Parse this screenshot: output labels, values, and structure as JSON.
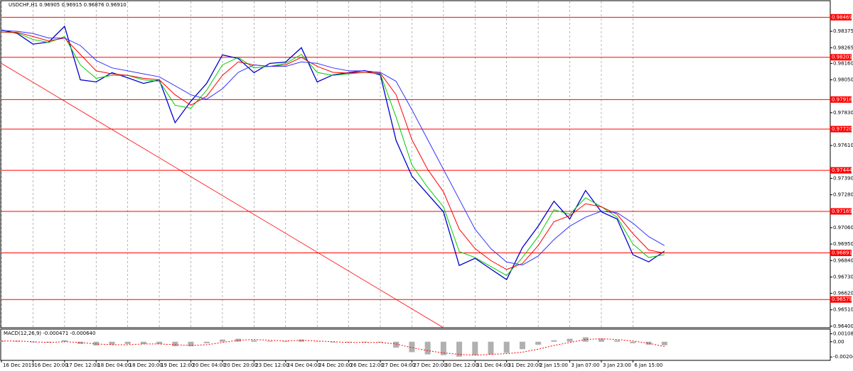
{
  "chart_data": [
    {
      "type": "line",
      "title": "USDCHF,H1  0.96905 0.96915 0.96876 0.96910",
      "x": [
        0,
        8,
        16,
        24,
        32,
        40,
        48,
        56,
        64,
        72,
        80,
        88,
        96,
        104,
        112,
        120,
        128,
        136,
        144,
        152,
        160,
        168,
        176,
        184,
        192,
        200,
        208,
        216,
        224,
        232,
        240,
        248,
        256,
        264,
        272,
        280,
        288,
        296,
        304,
        312,
        320,
        328,
        336
      ],
      "xlim": [
        0,
        420
      ],
      "xticks": [
        {
          "value": 0,
          "label": "16 Dec 2019"
        },
        {
          "value": 16,
          "label": "16 Dec 20:00"
        },
        {
          "value": 32,
          "label": "17 Dec 12:00"
        },
        {
          "value": 48,
          "label": "18 Dec 04:00"
        },
        {
          "value": 64,
          "label": "18 Dec 20:00"
        },
        {
          "value": 80,
          "label": "19 Dec 12:00"
        },
        {
          "value": 96,
          "label": "20 Dec 04:00"
        },
        {
          "value": 112,
          "label": "20 Dec 20:00"
        },
        {
          "value": 128,
          "label": "23 Dec 12:00"
        },
        {
          "value": 144,
          "label": "24 Dec 04:00"
        },
        {
          "value": 160,
          "label": "24 Dec 20:00"
        },
        {
          "value": 176,
          "label": "26 Dec 12:00"
        },
        {
          "value": 192,
          "label": "27 Dec 04:00"
        },
        {
          "value": 208,
          "label": "27 Dec 20:00"
        },
        {
          "value": 224,
          "label": "30 Dec 12:00"
        },
        {
          "value": 240,
          "label": "31 Dec 04:00"
        },
        {
          "value": 256,
          "label": "31 Dec 20:00"
        },
        {
          "value": 272,
          "label": "2 Jan 15:00"
        },
        {
          "value": 288,
          "label": "3 Jan 07:00"
        },
        {
          "value": 304,
          "label": "3 Jan 23:00"
        },
        {
          "value": 320,
          "label": "6 Jan 15:00"
        }
      ],
      "ylim": [
        0.9639,
        0.98575
      ],
      "yticks": [
        0.98375,
        0.98265,
        {
          "value": 0.9816,
          "label": "0.98160"
        },
        {
          "value": 0.9805,
          "label": "0.98050"
        },
        {
          "value": 0.9783,
          "label": "0.97830"
        },
        {
          "value": 0.9761,
          "label": "0.97610"
        },
        {
          "value": 0.9739,
          "label": "0.97390"
        },
        {
          "value": 0.9728,
          "label": "0.97280"
        },
        {
          "value": 0.9706,
          "label": "0.97060"
        },
        {
          "value": 0.9695,
          "label": "0.96950"
        },
        {
          "value": 0.9684,
          "label": "0.96840"
        },
        {
          "value": 0.9673,
          "label": "0.96730"
        },
        {
          "value": 0.9662,
          "label": "0.96620"
        },
        {
          "value": 0.9651,
          "label": "0.96510"
        },
        {
          "value": 0.964,
          "label": "0.96400"
        }
      ],
      "grid": true,
      "series": [
        {
          "color": "#0000cc",
          "values": [
            0.98384,
            0.98361,
            0.98289,
            0.98303,
            0.98408,
            0.9805,
            0.98036,
            0.98098,
            0.98064,
            0.98026,
            0.9805,
            0.97763,
            0.97907,
            0.98026,
            0.98217,
            0.98193,
            0.98098,
            0.9816,
            0.98169,
            0.98265,
            0.98036,
            0.98083,
            0.98098,
            0.98112,
            0.98083,
            0.97644,
            0.97405,
            0.97285,
            0.97166,
            0.96807,
            0.96855,
            0.96783,
            0.96712,
            0.96927,
            0.9707,
            0.97237,
            0.97118,
            0.97309,
            0.97166,
            0.97118,
            0.96879,
            0.96831,
            0.96903
          ]
        },
        {
          "color": "#00cc00",
          "values": [
            0.9837,
            0.98365,
            0.9832,
            0.983,
            0.9834,
            0.9815,
            0.9806,
            0.9808,
            0.9808,
            0.9805,
            0.9804,
            0.9788,
            0.9786,
            0.9798,
            0.9815,
            0.982,
            0.9813,
            0.9814,
            0.9816,
            0.9822,
            0.981,
            0.9808,
            0.9809,
            0.981,
            0.9809,
            0.978,
            0.9748,
            0.9733,
            0.972,
            0.969,
            0.9686,
            0.968,
            0.9674,
            0.9686,
            0.97,
            0.9718,
            0.9715,
            0.9726,
            0.972,
            0.9713,
            0.9695,
            0.9686,
            0.9688
          ]
        },
        {
          "color": "#ff0000",
          "values": [
            0.9837,
            0.98368,
            0.9834,
            0.9831,
            0.9833,
            0.9822,
            0.9811,
            0.9809,
            0.9808,
            0.9806,
            0.9805,
            0.9795,
            0.9788,
            0.9794,
            0.9808,
            0.9817,
            0.9815,
            0.9814,
            0.9815,
            0.982,
            0.9814,
            0.981,
            0.98095,
            0.981,
            0.98095,
            0.9795,
            0.9765,
            0.9745,
            0.973,
            0.9705,
            0.9692,
            0.9684,
            0.9678,
            0.9682,
            0.9694,
            0.971,
            0.9714,
            0.9722,
            0.972,
            0.9715,
            0.9702,
            0.9691,
            0.9689
          ]
        },
        {
          "color": "#3333ff",
          "values": [
            0.9838,
            0.98375,
            0.9836,
            0.9833,
            0.9833,
            0.9828,
            0.9818,
            0.9813,
            0.9811,
            0.9809,
            0.9807,
            0.9801,
            0.9795,
            0.9792,
            0.9799,
            0.981,
            0.9815,
            0.9814,
            0.9814,
            0.9817,
            0.9816,
            0.9813,
            0.9811,
            0.9811,
            0.981,
            0.9804,
            0.9785,
            0.9765,
            0.9745,
            0.9725,
            0.9705,
            0.9692,
            0.9683,
            0.9681,
            0.9687,
            0.9698,
            0.9707,
            0.9713,
            0.9717,
            0.9716,
            0.9709,
            0.97,
            0.9694
          ]
        }
      ],
      "levels": {
        "color": "#ff0000",
        "values": [
          0.98469,
          0.98201,
          0.97918,
          0.9772,
          0.97444,
          0.97169,
          0.96891,
          0.96579
        ],
        "value_labels": [
          "0.98469",
          "0.98201",
          "0.97918",
          "0.97720",
          "0.97444",
          "0.97169",
          "0.96891",
          "0.96579"
        ]
      },
      "trendline": {
        "color": "#ff0000",
        "x": [
          0,
          224
        ],
        "values": [
          0.9816,
          0.9639
        ]
      }
    },
    {
      "type": "macd",
      "title": "MACD(12,26,9) -0.000471 -0.000640",
      "ylim": [
        -0.0025,
        0.0015
      ],
      "yticks": [
        0.001081,
        {
          "value": 0,
          "label": "0.00"
        },
        -0.002043
      ],
      "histogram": {
        "color": "#b0b0b0",
        "values": [
          0.0001,
          0.0001,
          -0.0001,
          -0.0001,
          0.0002,
          -0.0003,
          -0.0005,
          -0.0004,
          -0.0003,
          -0.0003,
          -0.0003,
          -0.0006,
          -0.0006,
          -0.0002,
          0.0003,
          0.0004,
          0.0002,
          0.0001,
          0.0001,
          0.0003,
          0,
          -0.0001,
          -0.0001,
          -0.0001,
          -0.0001,
          -0.0008,
          -0.0014,
          -0.0017,
          -0.0018,
          -0.002,
          -0.0018,
          -0.0017,
          -0.0015,
          -0.001,
          -0.0004,
          0.0002,
          0.0004,
          0.0006,
          0.0004,
          0.0002,
          -0.0002,
          -0.0004,
          -0.00047
        ]
      },
      "signal": {
        "color": "#ff0000",
        "values": [
          0.0001,
          0.0001,
          0,
          -0.0001,
          0,
          -0.0001,
          -0.0003,
          -0.0004,
          -0.0004,
          -0.0003,
          -0.0003,
          -0.0004,
          -0.0005,
          -0.0004,
          -0.0001,
          0.0002,
          0.0003,
          0.0002,
          0.0001,
          0.0002,
          0.0001,
          0,
          -0.0001,
          -0.0001,
          -0.0001,
          -0.0003,
          -0.0008,
          -0.0012,
          -0.0015,
          -0.0017,
          -0.0018,
          -0.0017,
          -0.0016,
          -0.0014,
          -0.001,
          -0.0005,
          -0.0001,
          0.0003,
          0.0004,
          0.0003,
          0.0001,
          -0.0002,
          -0.00064
        ]
      }
    }
  ]
}
